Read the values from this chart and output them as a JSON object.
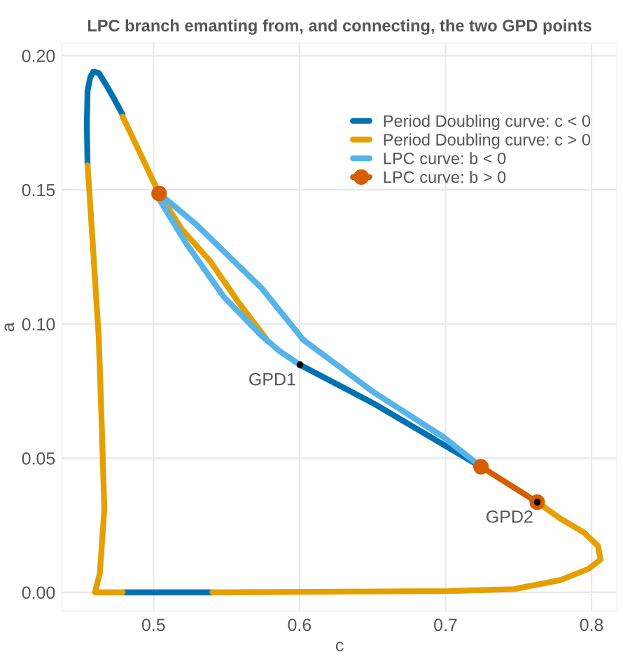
{
  "chart_data": {
    "type": "line",
    "title": "LPC branch emanting from, and connecting, the two GPD points",
    "xlabel": "c",
    "ylabel": "a",
    "xlim": [
      0.4375,
      0.8173
    ],
    "ylim": [
      -0.0071,
      0.2047
    ],
    "xticks": [
      0.5,
      0.6,
      0.7,
      0.8
    ],
    "yticks": [
      {
        "value": 0,
        "label": "0.00"
      },
      {
        "value": 0.05,
        "label": "0.05"
      },
      {
        "value": 0.1,
        "label": "0.10"
      },
      {
        "value": 0.15,
        "label": "0.15"
      },
      {
        "value": 0.2,
        "label": "0.20"
      }
    ],
    "grid": true,
    "legend": "top right",
    "series": [
      {
        "name": "Period Doubling curve: c < 0",
        "color": "#0072b2",
        "x": [
          0.4548,
          0.4543,
          0.4548,
          0.4567,
          0.4587,
          0.4625,
          0.4683,
          0.474,
          0.4788,
          null,
          0.4788,
          0.51,
          0.5404,
          null,
          0.6003,
          0.6507,
          0.7243
        ],
        "values": [
          0.1591,
          0.1743,
          0.1869,
          0.192,
          0.194,
          0.1935,
          0.1884,
          0.1829,
          0.178,
          null,
          0,
          0,
          0,
          null,
          0.0848,
          0.0704,
          0.0468
        ]
      },
      {
        "name": "Period Doubling curve: c > 0",
        "color": "#e69f00",
        "x": [
          0.4788,
          0.4904,
          0.5038,
          0.5192,
          0.5385,
          0.5577,
          0.5769,
          null,
          0.4548,
          0.4567,
          0.4625,
          0.4644,
          0.4663,
          0.4632,
          0.4599,
          0.4788,
          null,
          0.5404,
          0.6346,
          0.7019,
          0.7468,
          0.7788,
          0.7981,
          0.8061,
          0.8045,
          0.7949,
          0.7788,
          0.7628
        ],
        "values": [
          0.1773,
          0.1641,
          0.1486,
          0.1354,
          0.1236,
          0.1084,
          0.0947,
          null,
          0.1591,
          0.1439,
          0.0947,
          0.0643,
          0.0309,
          0.0071,
          0,
          0,
          null,
          0,
          0.0003,
          0.0005,
          0.0012,
          0.0046,
          0.0088,
          0.0122,
          0.0172,
          0.0223,
          0.0274,
          0.0336
        ]
      },
      {
        "name": "LPC curve: b < 0",
        "color": "#56b4e9",
        "x": [
          0.6003,
          0.5865,
          0.5738,
          0.5481,
          0.5221,
          0.5029,
          0.5038,
          0.5288,
          0.5738,
          0.6026,
          0.6507,
          0.6988,
          0.7243
        ],
        "values": [
          0.0848,
          0.0898,
          0.0957,
          0.1101,
          0.1302,
          0.1474,
          0.1486,
          0.1373,
          0.1135,
          0.0941,
          0.0746,
          0.0578,
          0.0468
        ]
      },
      {
        "name": "LPC curve: b > 0",
        "color": "#d55e00",
        "marker": "circle",
        "x": [
          0.5038,
          null,
          0.7243,
          0.7628
        ],
        "values": [
          0.1486,
          null,
          0.0468,
          0.0336
        ]
      }
    ],
    "annotations": [
      {
        "text": "GPD1",
        "x": 0.6003,
        "y": 0.0848
      },
      {
        "text": "GPD2",
        "x": 0.7628,
        "y": 0.0336
      }
    ]
  }
}
